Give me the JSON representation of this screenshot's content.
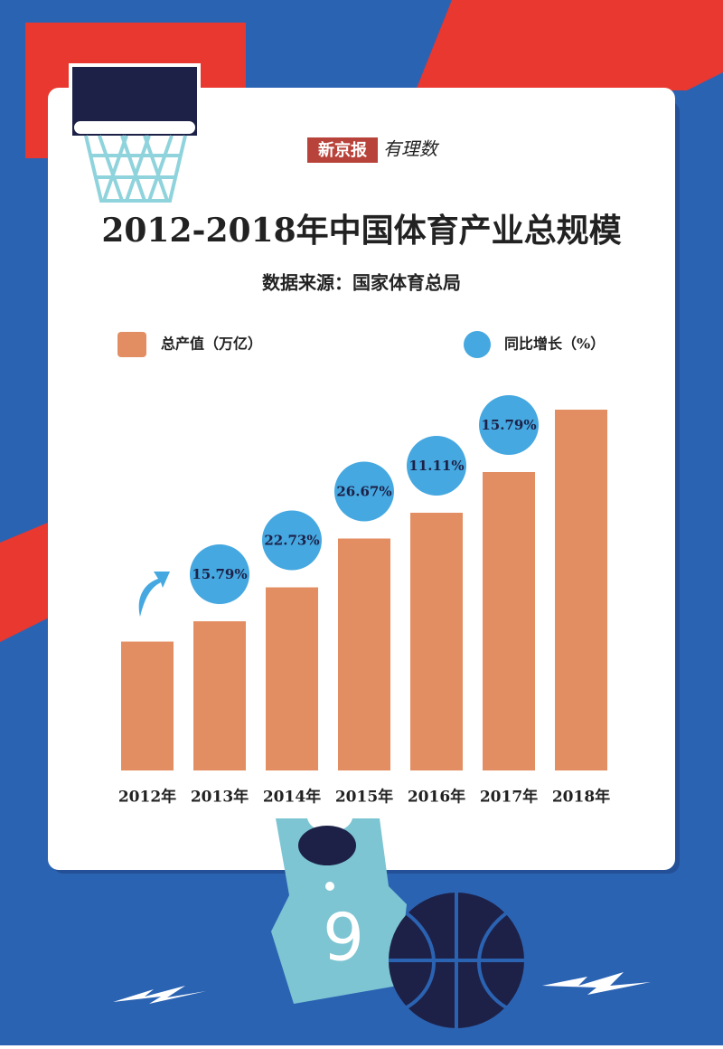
{
  "brand": {
    "name": "新京报",
    "column": "有理数"
  },
  "jersey_number": "9",
  "chart_data": {
    "type": "bar",
    "title": "2012-2018年中国体育产业总规模",
    "subtitle": "数据来源：国家体育总局",
    "categories": [
      "2012年",
      "2013年",
      "2014年",
      "2015年",
      "2016年",
      "2017年",
      "2018年"
    ],
    "series": [
      {
        "name": "总产值（万亿）",
        "color": "#e38e62",
        "values": [
          0.95,
          1.1,
          1.35,
          1.71,
          1.9,
          2.2,
          2.66
        ]
      },
      {
        "name": "同比增长（%）",
        "color": "#45a8e0",
        "values": [
          null,
          15.79,
          22.73,
          26.67,
          11.11,
          15.79,
          null
        ],
        "value_labels": [
          null,
          "15.79%",
          "22.73%",
          "26.67%",
          "11.11%",
          "15.79%",
          null
        ]
      }
    ]
  }
}
